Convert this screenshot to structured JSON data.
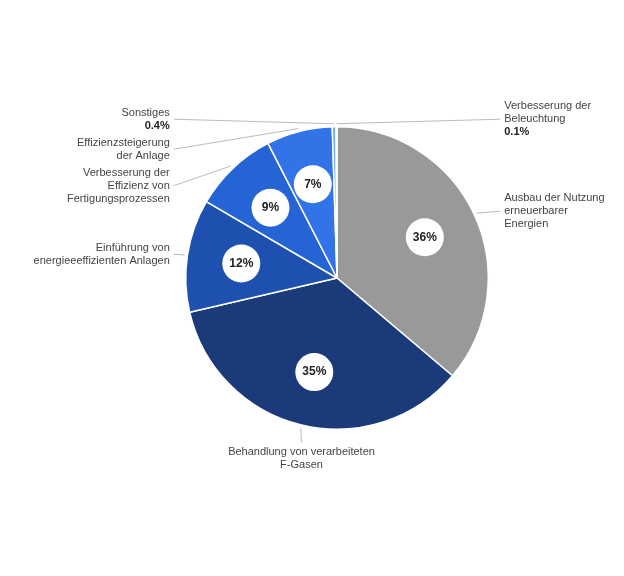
{
  "chart_data": {
    "type": "pie",
    "categories": [
      "Ausbau der Nutzung\nerneuerbarer\nEnergien",
      "Behandlung von verarbeiteten\nF-Gasen",
      "Einführung von\nenergieeeffizienten Anlagen",
      "Verbesserung der\nEffizienz von\nFertigungsprozessen",
      "Effizienzsteigerung\nder Anlage",
      "Sonstiges",
      "Verbesserung der\nBeleuchtung"
    ],
    "values": [
      36,
      35,
      12,
      9,
      7,
      0.4,
      0.1
    ],
    "value_labels": [
      "36%",
      "35%",
      "12%",
      "9%",
      "7%",
      "0.4%",
      "0.1%"
    ],
    "colors": [
      "#999999",
      "#1a3a7a",
      "#1e50b0",
      "#2464d4",
      "#3373e8",
      "#72a8f5",
      "#c8ddf8"
    ],
    "data_labels": true
  }
}
